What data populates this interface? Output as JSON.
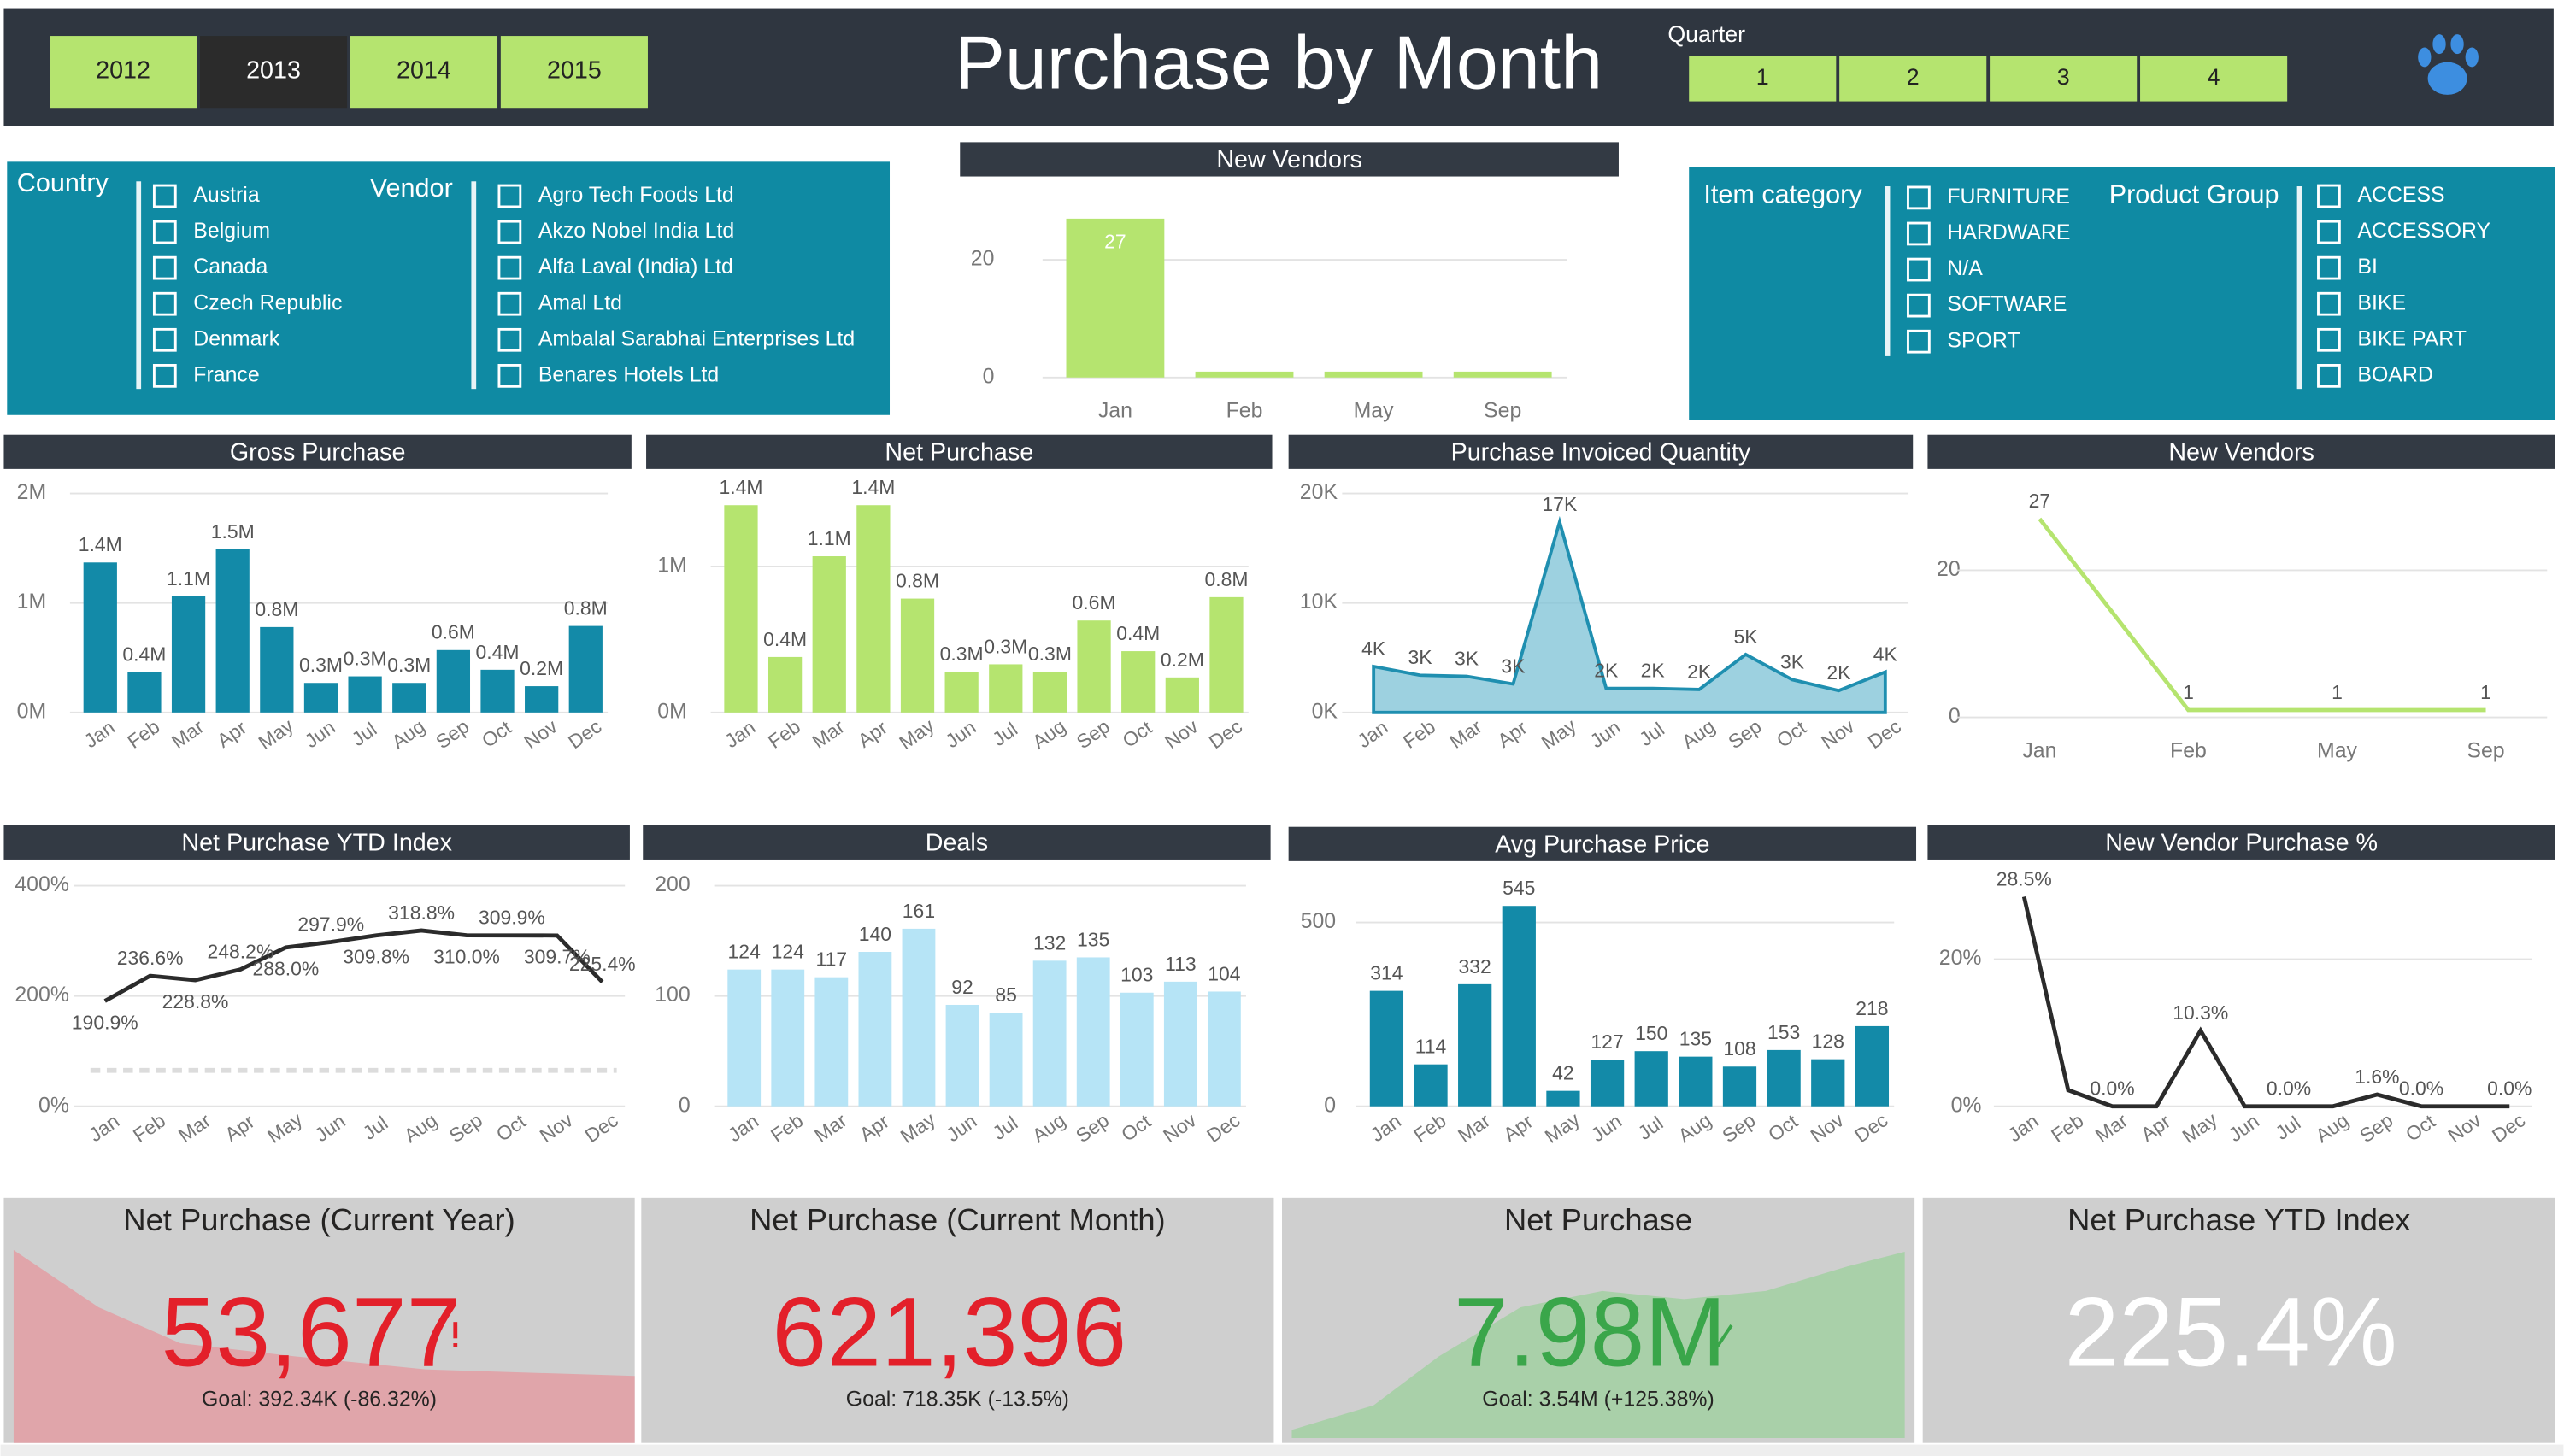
{
  "header": {
    "years": [
      "2012",
      "2013",
      "2014",
      "2015"
    ],
    "selected_year": "2013",
    "title": "Purchase by Month",
    "quarter_label": "Quarter",
    "quarters": [
      "1",
      "2",
      "3",
      "4"
    ]
  },
  "filters": {
    "country": {
      "label": "Country",
      "items": [
        "Austria",
        "Belgium",
        "Canada",
        "Czech Republic",
        "Denmark",
        "France"
      ]
    },
    "vendor": {
      "label": "Vendor",
      "items": [
        "Agro Tech Foods Ltd",
        "Akzo Nobel India Ltd",
        "Alfa Laval (India) Ltd",
        "Amal Ltd",
        "Ambalal Sarabhai Enterprises Ltd",
        "Benares Hotels Ltd"
      ]
    },
    "item_category": {
      "label": "Item category",
      "items": [
        "FURNITURE",
        "HARDWARE",
        "N/A",
        "SOFTWARE",
        "SPORT"
      ]
    },
    "product_group": {
      "label": "Product Group",
      "items": [
        "ACCESS",
        "ACCESSORY",
        "BI",
        "BIKE",
        "BIKE PART",
        "BOARD"
      ]
    }
  },
  "chart_data": [
    {
      "type": "bar",
      "title": "New Vendors",
      "categories": [
        "Jan",
        "Feb",
        "May",
        "Sep"
      ],
      "values": [
        27,
        1,
        1,
        1
      ],
      "value_labels": [
        "27",
        null,
        null,
        null
      ],
      "color": "#b5e46f",
      "ylim": [
        0,
        30
      ],
      "yticks": [
        0,
        20
      ],
      "grid": true
    },
    {
      "type": "bar",
      "title": "Gross Purchase",
      "categories": [
        "Jan",
        "Feb",
        "Mar",
        "Apr",
        "May",
        "Jun",
        "Jul",
        "Aug",
        "Sep",
        "Oct",
        "Nov",
        "Dec"
      ],
      "values": [
        1.37,
        0.37,
        1.06,
        1.49,
        0.78,
        0.27,
        0.33,
        0.27,
        0.57,
        0.39,
        0.24,
        0.79
      ],
      "value_labels": [
        "1.4M",
        "0.4M",
        "1.1M",
        "1.5M",
        "0.8M",
        "0.3M",
        "0.3M",
        "0.3M",
        "0.6M",
        "0.4M",
        "0.2M",
        "0.8M"
      ],
      "color": "#138aa8",
      "ylim": [
        0,
        2
      ],
      "yticks": [
        {
          "value": 0,
          "label": "0M"
        },
        {
          "value": 1,
          "label": "1M"
        },
        {
          "value": 2,
          "label": "2M"
        }
      ],
      "grid": true
    },
    {
      "type": "bar",
      "title": "Net Purchase",
      "categories": [
        "Jan",
        "Feb",
        "Mar",
        "Apr",
        "May",
        "Jun",
        "Jul",
        "Aug",
        "Sep",
        "Oct",
        "Nov",
        "Dec"
      ],
      "values": [
        1.42,
        0.38,
        1.07,
        1.42,
        0.78,
        0.28,
        0.33,
        0.28,
        0.63,
        0.42,
        0.24,
        0.79
      ],
      "value_labels": [
        "1.4M",
        "0.4M",
        "1.1M",
        "1.4M",
        "0.8M",
        "0.3M",
        "0.3M",
        "0.3M",
        "0.6M",
        "0.4M",
        "0.2M",
        "0.8M"
      ],
      "color": "#b5e46f",
      "ylim": [
        0,
        1.5
      ],
      "yticks": [
        {
          "value": 0,
          "label": "0M"
        },
        {
          "value": 1,
          "label": "1M"
        }
      ],
      "grid": true
    },
    {
      "type": "area",
      "title": "Purchase Invoiced Quantity",
      "categories": [
        "Jan",
        "Feb",
        "Mar",
        "Apr",
        "May",
        "Jun",
        "Jul",
        "Aug",
        "Sep",
        "Oct",
        "Nov",
        "Dec"
      ],
      "values": [
        4.2,
        3.4,
        3.3,
        2.6,
        17.4,
        2.2,
        2.2,
        2.1,
        5.3,
        3.0,
        2.0,
        3.7
      ],
      "value_labels": [
        "4K",
        "3K",
        "3K",
        "3K",
        "17K",
        "2K",
        "2K",
        "2K",
        "5K",
        "3K",
        "2K",
        "4K"
      ],
      "color": "#1f8fb0",
      "ylim": [
        0,
        20
      ],
      "yticks": [
        {
          "value": 0,
          "label": "0K"
        },
        {
          "value": 10,
          "label": "10K"
        },
        {
          "value": 20,
          "label": "20K"
        }
      ],
      "grid": true
    },
    {
      "type": "line",
      "title": "New Vendors",
      "categories": [
        "Jan",
        "Feb",
        "May",
        "Sep"
      ],
      "values": [
        27,
        1,
        1,
        1
      ],
      "color": "#b5e46f",
      "ylim": [
        0,
        30
      ],
      "yticks": [
        0,
        20
      ],
      "grid": true
    },
    {
      "type": "line",
      "title": "Net Purchase YTD Index",
      "categories": [
        "Jan",
        "Feb",
        "Mar",
        "Apr",
        "May",
        "Jun",
        "Jul",
        "Aug",
        "Sep",
        "Oct",
        "Nov",
        "Dec"
      ],
      "values": [
        190.9,
        236.6,
        228.8,
        248.2,
        288.0,
        297.9,
        309.8,
        318.8,
        310.0,
        309.9,
        309.7,
        225.4
      ],
      "value_labels": [
        "190.9%",
        "236.6%",
        "228.8%",
        "248.2%",
        "288.0%",
        "297.9%",
        "309.8%",
        "318.8%",
        "310.0%",
        "309.9%",
        "309.7%",
        "225.4%"
      ],
      "reference_line": 65,
      "color": "#2b2b2b",
      "ylim": [
        0,
        400
      ],
      "yticks": [
        {
          "value": 0,
          "label": "0%"
        },
        {
          "value": 200,
          "label": "200%"
        },
        {
          "value": 400,
          "label": "400%"
        }
      ],
      "grid": true
    },
    {
      "type": "bar",
      "title": "Deals",
      "categories": [
        "Jan",
        "Feb",
        "Mar",
        "Apr",
        "May",
        "Jun",
        "Jul",
        "Aug",
        "Sep",
        "Oct",
        "Nov",
        "Dec"
      ],
      "values": [
        124,
        124,
        117,
        140,
        161,
        92,
        85,
        132,
        135,
        103,
        113,
        104
      ],
      "color": "#b6e4f6",
      "ylim": [
        0,
        200
      ],
      "yticks": [
        0,
        100,
        200
      ],
      "grid": true
    },
    {
      "type": "bar",
      "title": "Avg Purchase Price",
      "categories": [
        "Jan",
        "Feb",
        "Mar",
        "Apr",
        "May",
        "Jun",
        "Jul",
        "Aug",
        "Sep",
        "Oct",
        "Nov",
        "Dec"
      ],
      "values": [
        314,
        114,
        332,
        545,
        42,
        127,
        150,
        135,
        108,
        153,
        128,
        218
      ],
      "color": "#138aa8",
      "ylim": [
        0,
        600
      ],
      "yticks": [
        0,
        500
      ],
      "grid": true
    },
    {
      "type": "line",
      "title": "New Vendor Purchase %",
      "categories": [
        "Jan",
        "Feb",
        "Mar",
        "Apr",
        "May",
        "Jun",
        "Jul",
        "Aug",
        "Sep",
        "Oct",
        "Nov",
        "Dec"
      ],
      "values": [
        28.5,
        2.2,
        0,
        0,
        10.3,
        0,
        0,
        0,
        1.6,
        0,
        0,
        0
      ],
      "value_labels": [
        "28.5%",
        null,
        "0.0%",
        null,
        "10.3%",
        null,
        "0.0%",
        null,
        "1.6%",
        "0.0%",
        null,
        "0.0%"
      ],
      "color": "#2b2b2b",
      "ylim": [
        0,
        30
      ],
      "yticks": [
        {
          "value": 0,
          "label": "0%"
        },
        {
          "value": 20,
          "label": "20%"
        }
      ],
      "grid": true
    }
  ],
  "kpis": [
    {
      "title": "Net Purchase (Current Year)",
      "value": "53,677",
      "goal": "Goal: 392.34K (-86.32%)",
      "color": "#e3202a"
    },
    {
      "title": "Net Purchase (Current Month)",
      "value": "621,396",
      "goal": "Goal: 718.35K (-13.5%)",
      "color": "#e3202a"
    },
    {
      "title": "Net Purchase",
      "value": "7.98M",
      "goal": "Goal: 3.54M (+125.38%)",
      "color": "#3aa64a"
    },
    {
      "title": "Net Purchase YTD Index",
      "value": "225.4%",
      "color": "#ffffff"
    }
  ]
}
